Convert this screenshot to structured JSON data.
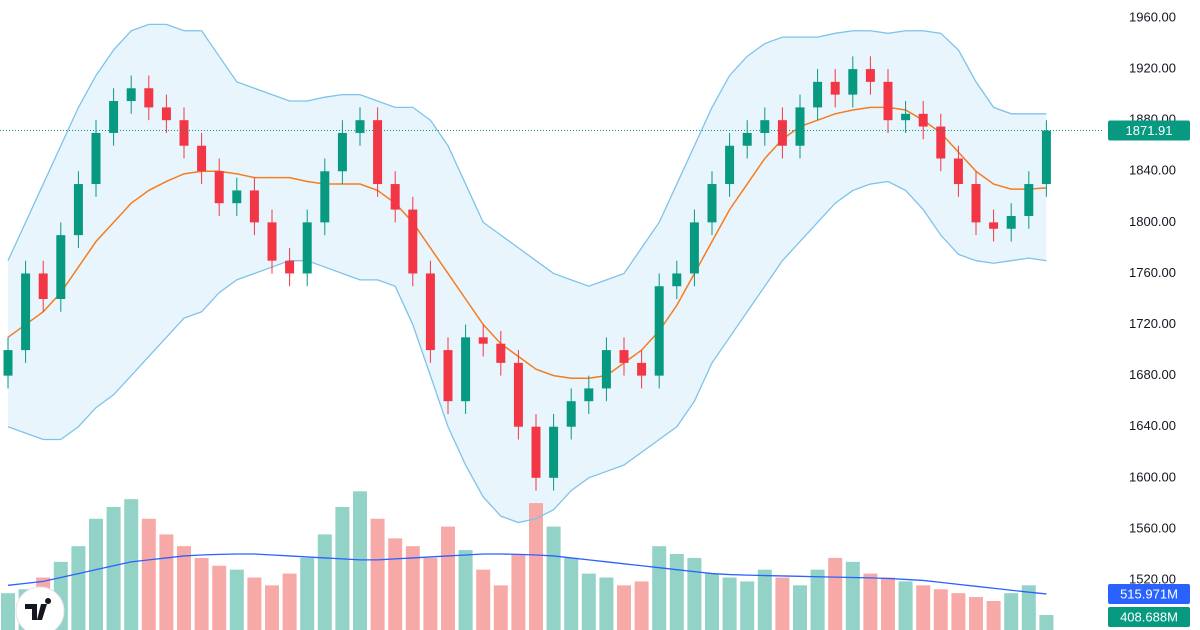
{
  "chart_data": {
    "type": "candlestick",
    "open": [
      1680,
      1700,
      1760,
      1740,
      1790,
      1830,
      1870,
      1895,
      1905,
      1890,
      1880,
      1860,
      1840,
      1815,
      1825,
      1800,
      1770,
      1760,
      1800,
      1840,
      1870,
      1880,
      1830,
      1810,
      1760,
      1700,
      1660,
      1710,
      1705,
      1690,
      1640,
      1600,
      1640,
      1660,
      1670,
      1700,
      1690,
      1680,
      1750,
      1760,
      1800,
      1830,
      1860,
      1870,
      1880,
      1860,
      1890,
      1910,
      1900,
      1920,
      1910,
      1880,
      1885,
      1875,
      1850,
      1830,
      1800,
      1795,
      1805,
      1830
    ],
    "high": [
      1710,
      1770,
      1770,
      1800,
      1840,
      1880,
      1905,
      1915,
      1915,
      1900,
      1890,
      1870,
      1850,
      1835,
      1835,
      1810,
      1780,
      1810,
      1850,
      1880,
      1890,
      1890,
      1840,
      1820,
      1770,
      1710,
      1720,
      1720,
      1715,
      1700,
      1650,
      1650,
      1670,
      1680,
      1710,
      1710,
      1700,
      1760,
      1770,
      1810,
      1840,
      1870,
      1880,
      1890,
      1890,
      1900,
      1920,
      1920,
      1930,
      1930,
      1920,
      1895,
      1895,
      1885,
      1860,
      1840,
      1810,
      1815,
      1840,
      1880
    ],
    "low": [
      1670,
      1690,
      1730,
      1730,
      1780,
      1820,
      1860,
      1885,
      1880,
      1870,
      1850,
      1830,
      1805,
      1805,
      1790,
      1760,
      1750,
      1750,
      1790,
      1830,
      1860,
      1820,
      1800,
      1750,
      1690,
      1650,
      1650,
      1695,
      1680,
      1630,
      1590,
      1590,
      1630,
      1650,
      1660,
      1680,
      1670,
      1670,
      1740,
      1750,
      1790,
      1820,
      1850,
      1860,
      1850,
      1850,
      1880,
      1890,
      1890,
      1900,
      1870,
      1870,
      1865,
      1840,
      1820,
      1790,
      1785,
      1785,
      1795,
      1820
    ],
    "close": [
      1700,
      1760,
      1740,
      1790,
      1830,
      1870,
      1895,
      1905,
      1890,
      1880,
      1860,
      1840,
      1815,
      1825,
      1800,
      1770,
      1760,
      1800,
      1840,
      1870,
      1880,
      1830,
      1810,
      1760,
      1700,
      1660,
      1710,
      1705,
      1690,
      1640,
      1600,
      1640,
      1660,
      1670,
      1700,
      1690,
      1680,
      1750,
      1760,
      1800,
      1830,
      1860,
      1870,
      1880,
      1860,
      1890,
      1910,
      1900,
      1920,
      1910,
      1880,
      1885,
      1875,
      1850,
      1830,
      1800,
      1795,
      1805,
      1830,
      1871.91
    ],
    "bb_upper": [
      1770,
      1800,
      1830,
      1860,
      1890,
      1915,
      1935,
      1950,
      1955,
      1955,
      1950,
      1950,
      1930,
      1910,
      1905,
      1900,
      1895,
      1895,
      1898,
      1900,
      1900,
      1895,
      1890,
      1890,
      1880,
      1860,
      1830,
      1800,
      1790,
      1780,
      1770,
      1760,
      1755,
      1750,
      1755,
      1760,
      1780,
      1800,
      1830,
      1860,
      1890,
      1915,
      1930,
      1940,
      1945,
      1945,
      1945,
      1948,
      1950,
      1950,
      1948,
      1950,
      1950,
      1948,
      1935,
      1910,
      1890,
      1885,
      1885,
      1885
    ],
    "bb_middle": [
      1710,
      1720,
      1730,
      1745,
      1765,
      1785,
      1800,
      1815,
      1825,
      1832,
      1838,
      1840,
      1840,
      1838,
      1835,
      1835,
      1835,
      1832,
      1830,
      1830,
      1830,
      1825,
      1815,
      1800,
      1780,
      1760,
      1740,
      1720,
      1705,
      1695,
      1685,
      1680,
      1678,
      1678,
      1680,
      1690,
      1700,
      1715,
      1735,
      1760,
      1785,
      1810,
      1830,
      1850,
      1865,
      1875,
      1880,
      1885,
      1888,
      1890,
      1890,
      1888,
      1880,
      1870,
      1855,
      1840,
      1830,
      1826,
      1826,
      1827
    ],
    "bb_lower": [
      1640,
      1635,
      1630,
      1630,
      1640,
      1655,
      1665,
      1680,
      1695,
      1710,
      1725,
      1730,
      1745,
      1755,
      1760,
      1765,
      1770,
      1770,
      1765,
      1760,
      1755,
      1755,
      1750,
      1720,
      1680,
      1640,
      1610,
      1585,
      1570,
      1565,
      1568,
      1575,
      1590,
      1600,
      1605,
      1610,
      1620,
      1630,
      1640,
      1660,
      1690,
      1710,
      1730,
      1750,
      1770,
      1785,
      1800,
      1815,
      1825,
      1830,
      1832,
      1825,
      1810,
      1790,
      1775,
      1770,
      1768,
      1770,
      1772,
      1770
    ],
    "volume": [
      520,
      540,
      600,
      680,
      760,
      900,
      960,
      1000,
      900,
      820,
      760,
      700,
      660,
      640,
      600,
      560,
      620,
      700,
      820,
      960,
      1040,
      900,
      800,
      760,
      700,
      860,
      740,
      640,
      560,
      720,
      980,
      860,
      700,
      620,
      600,
      560,
      580,
      760,
      720,
      700,
      620,
      600,
      580,
      640,
      600,
      560,
      640,
      700,
      680,
      620,
      600,
      580,
      560,
      540,
      520,
      500,
      480,
      520,
      560,
      408.688
    ],
    "volume_ma": [
      560,
      570,
      580,
      600,
      620,
      640,
      660,
      680,
      690,
      700,
      710,
      715,
      718,
      720,
      720,
      715,
      710,
      705,
      700,
      695,
      690,
      690,
      695,
      700,
      705,
      710,
      715,
      720,
      720,
      718,
      715,
      710,
      700,
      690,
      680,
      670,
      660,
      650,
      640,
      630,
      620,
      615,
      612,
      610,
      608,
      606,
      604,
      602,
      600,
      598,
      595,
      590,
      585,
      575,
      565,
      555,
      545,
      535,
      525,
      515.971
    ],
    "volume_labels": {
      "volume": "408.688M",
      "volume_ma": "515.971M"
    },
    "last_price_label": "1871.91",
    "ylim": [
      1520,
      1960
    ],
    "yticks": [
      {
        "value": 1520,
        "label": "1520.00"
      },
      {
        "value": 1560,
        "label": "1560.00"
      },
      {
        "value": 1600,
        "label": "1600.00"
      },
      {
        "value": 1640,
        "label": "1640.00"
      },
      {
        "value": 1680,
        "label": "1680.00"
      },
      {
        "value": 1720,
        "label": "1720.00"
      },
      {
        "value": 1760,
        "label": "1760.00"
      },
      {
        "value": 1800,
        "label": "1800.00"
      },
      {
        "value": 1840,
        "label": "1840.00"
      },
      {
        "value": 1880,
        "label": "1880.00"
      },
      {
        "value": 1920,
        "label": "1920.00"
      },
      {
        "value": 1960,
        "label": "1960.00"
      }
    ],
    "volume_ylim": [
      0,
      1200
    ],
    "colors": {
      "up": "#089981",
      "down": "#f23645",
      "band": "#7ec3ea",
      "band_fill": "#e3f2fd",
      "middle": "#f57c1f",
      "volume_ma": "#2962ff",
      "volume_up": "#92d2c7",
      "volume_down": "#f7a9a7"
    }
  }
}
